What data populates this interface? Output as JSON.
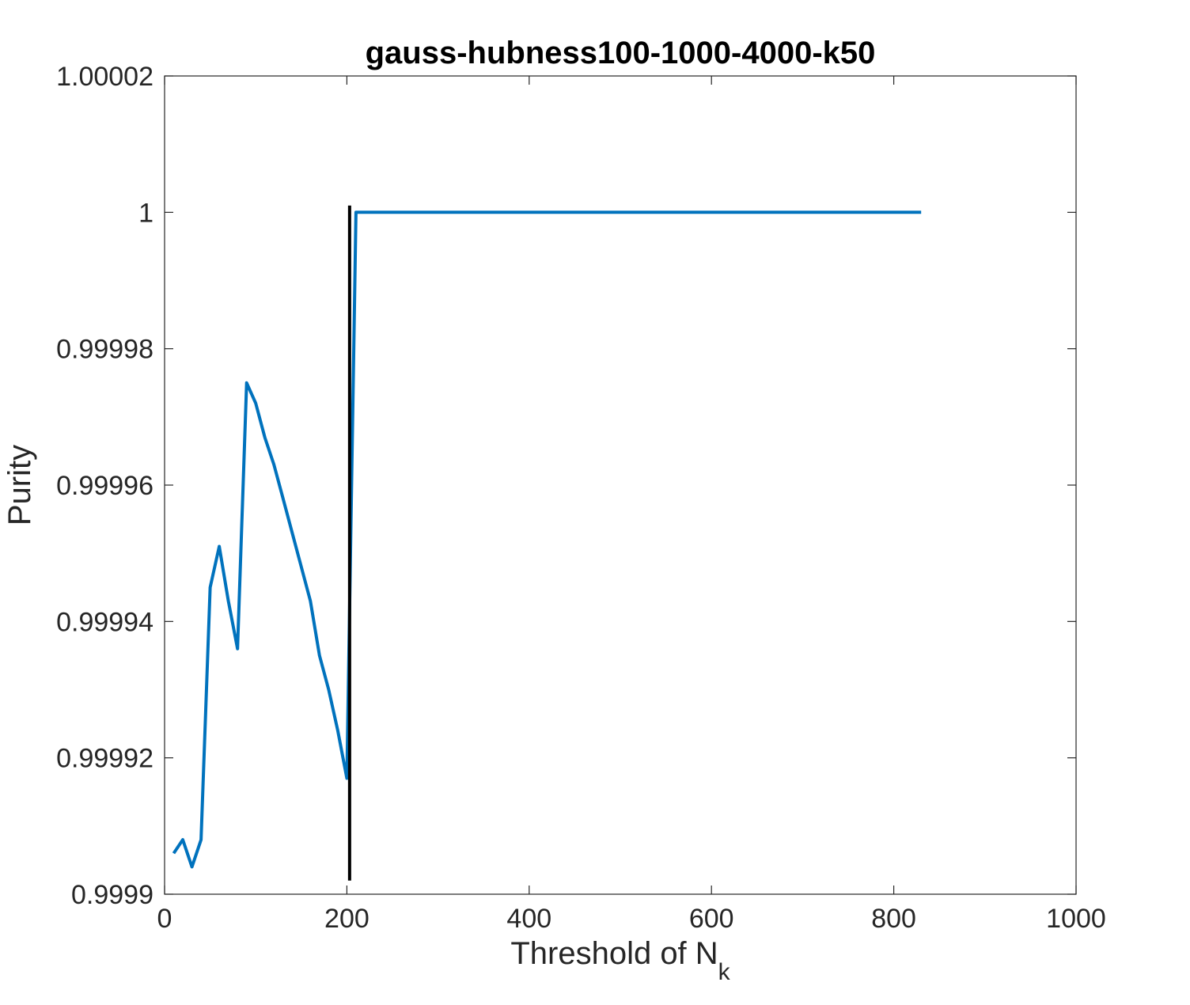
{
  "chart_data": {
    "type": "line",
    "title": "gauss-hubness100-1000-4000-k50",
    "xlabel": "Threshold of N",
    "xlabel_subscript": "k",
    "ylabel": "Purity",
    "xlim": [
      0,
      1000
    ],
    "ylim": [
      0.9999,
      1.00002
    ],
    "xticks": [
      0,
      200,
      400,
      600,
      800,
      1000
    ],
    "xtick_labels": [
      "0",
      "200",
      "400",
      "600",
      "800",
      "1000"
    ],
    "yticks": [
      0.9999,
      0.99992,
      0.99994,
      0.99996,
      0.99998,
      1.0,
      1.00002
    ],
    "ytick_labels": [
      "0.9999",
      "0.99992",
      "0.99994",
      "0.99996",
      "0.99998",
      "1",
      "1.00002"
    ],
    "grid": false,
    "series": [
      {
        "color": "#0072bd",
        "x": [
          10,
          20,
          30,
          40,
          50,
          60,
          70,
          80,
          90,
          100,
          110,
          120,
          130,
          140,
          150,
          160,
          170,
          180,
          190,
          200,
          210,
          220,
          300,
          400,
          500,
          600,
          700,
          800,
          830
        ],
        "y": [
          0.999906,
          0.999908,
          0.999904,
          0.999908,
          0.999945,
          0.999951,
          0.999943,
          0.999936,
          0.999975,
          0.999972,
          0.999967,
          0.999963,
          0.999958,
          0.999953,
          0.999948,
          0.999943,
          0.999935,
          0.99993,
          0.999924,
          0.999917,
          1.0,
          1.0,
          1.0,
          1.0,
          1.0,
          1.0,
          1.0,
          1.0,
          1.0
        ]
      }
    ],
    "vertical_line": {
      "x": 203,
      "y_range": [
        0.999902,
        1.000001
      ],
      "color": "#000000"
    }
  }
}
